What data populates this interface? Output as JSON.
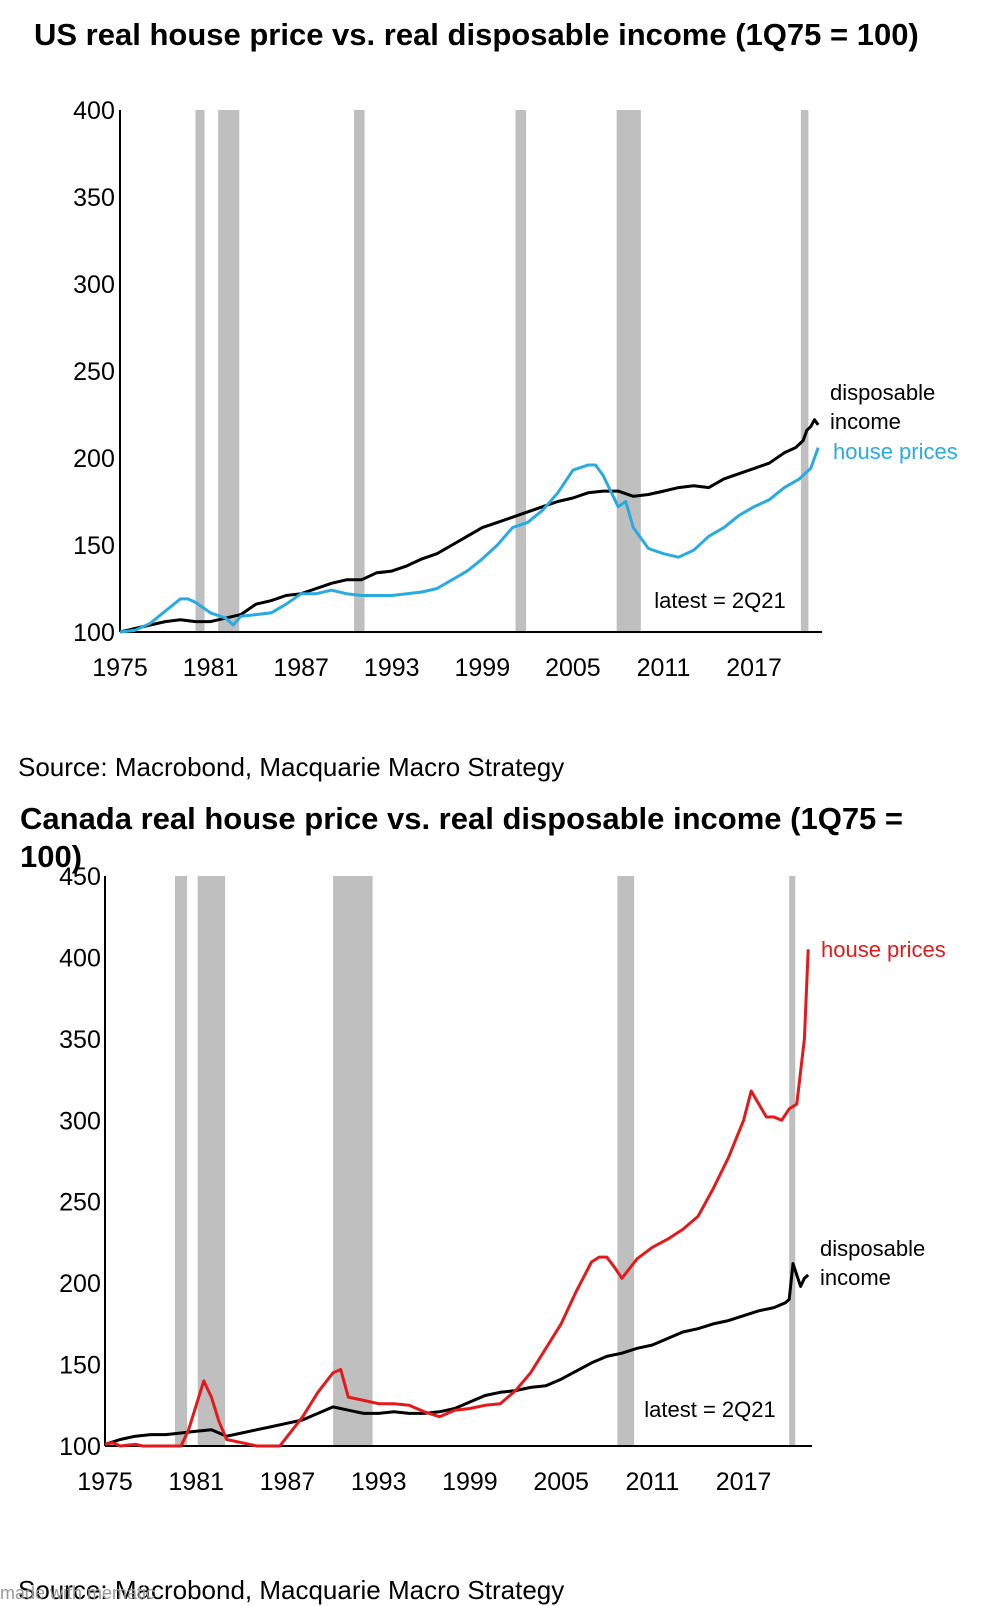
{
  "charts": [
    {
      "title": "US real house price vs. real disposable income (1Q75 = 100)",
      "source": "Source: Macrobond, Macquarie Macro Strategy",
      "note": "latest = 2Q21"
    },
    {
      "title": "Canada real house price vs. real disposable income (1Q75 = 100)",
      "source": "Source: Macrobond, Macquarie Macro Strategy",
      "note": "latest = 2Q21"
    }
  ],
  "watermark": "made with mematic",
  "chart_data": [
    {
      "type": "line",
      "title": "US real house price vs. real disposable income (1Q75 = 100)",
      "xlabel": "",
      "ylabel": "",
      "xlim": [
        1975,
        2021.5
      ],
      "ylim": [
        100,
        400
      ],
      "x_ticks": [
        1975,
        1981,
        1987,
        1993,
        1999,
        2005,
        2011,
        2017
      ],
      "y_ticks": [
        100,
        150,
        200,
        250,
        300,
        350,
        400
      ],
      "recessions": [
        [
          1980.0,
          1980.6
        ],
        [
          1981.5,
          1982.9
        ],
        [
          1990.5,
          1991.2
        ],
        [
          2001.2,
          2001.9
        ],
        [
          2007.9,
          2009.5
        ],
        [
          2020.1,
          2020.6
        ]
      ],
      "colors": {
        "disposable_income": "#000000",
        "house_prices": "#29abe2",
        "recession": "#bfbfbf"
      },
      "series": [
        {
          "name": "disposable income",
          "x": [
            1975,
            1976,
            1977,
            1978,
            1979,
            1980,
            1981,
            1982,
            1983,
            1984,
            1985,
            1986,
            1987,
            1988,
            1989,
            1990,
            1991,
            1992,
            1993,
            1994,
            1995,
            1996,
            1997,
            1998,
            1999,
            2000,
            2001,
            2002,
            2003,
            2004,
            2005,
            2006,
            2007,
            2008,
            2009,
            2010,
            2011,
            2012,
            2013,
            2014,
            2015,
            2016,
            2017,
            2018,
            2019,
            2019.75,
            2020.25,
            2020.5,
            2020.75,
            2021.0,
            2021.25
          ],
          "values": [
            100,
            102,
            104,
            106,
            107,
            106,
            106,
            108,
            110,
            116,
            118,
            121,
            122,
            125,
            128,
            130,
            130,
            134,
            135,
            138,
            142,
            145,
            150,
            155,
            160,
            163,
            166,
            169,
            172,
            175,
            177,
            180,
            181,
            181,
            178,
            179,
            181,
            183,
            184,
            183,
            188,
            191,
            194,
            197,
            203,
            206,
            210,
            216,
            218,
            222,
            219
          ]
        },
        {
          "name": "house prices",
          "x": [
            1975,
            1976,
            1977,
            1978,
            1979,
            1979.5,
            1980,
            1981,
            1982,
            1982.5,
            1983,
            1985,
            1986,
            1987,
            1988,
            1989,
            1990,
            1991,
            1992,
            1993,
            1994,
            1995,
            1996,
            1997,
            1998,
            1999,
            2000,
            2001,
            2002,
            2003,
            2004,
            2005,
            2006,
            2006.5,
            2007,
            2008,
            2008.5,
            2009,
            2010,
            2011,
            2012,
            2013,
            2014,
            2015,
            2016,
            2017,
            2018,
            2019,
            2020,
            2020.75,
            2021.25
          ],
          "values": [
            100,
            101,
            105,
            112,
            119,
            119,
            117,
            111,
            108,
            104,
            109,
            111,
            116,
            122,
            122,
            124,
            122,
            121,
            121,
            121,
            122,
            123,
            125,
            130,
            135,
            142,
            150,
            160,
            163,
            170,
            180,
            193,
            196,
            196,
            190,
            172,
            175,
            160,
            148,
            145,
            143,
            147,
            155,
            160,
            167,
            172,
            176,
            183,
            188,
            194,
            206
          ]
        }
      ],
      "annotations": [
        "disposable income",
        "house prices",
        "latest = 2Q21"
      ]
    },
    {
      "type": "line",
      "title": "Canada real house price vs. real disposable income (1Q75 = 100)",
      "xlabel": "",
      "ylabel": "",
      "xlim": [
        1975,
        2021.5
      ],
      "ylim": [
        100,
        450
      ],
      "x_ticks": [
        1975,
        1981,
        1987,
        1993,
        1999,
        2005,
        2011,
        2017
      ],
      "y_ticks": [
        100,
        150,
        200,
        250,
        300,
        350,
        400,
        450
      ],
      "recessions": [
        [
          1979.6,
          1980.4
        ],
        [
          1981.1,
          1982.9
        ],
        [
          1990.0,
          1992.6
        ],
        [
          2008.7,
          2009.8
        ],
        [
          2020.0,
          2020.4
        ]
      ],
      "colors": {
        "disposable_income": "#000000",
        "house_prices": "#e31a1c",
        "recession": "#bfbfbf"
      },
      "series": [
        {
          "name": "house prices",
          "x": [
            1975,
            1975.5,
            1976,
            1977,
            1977.5,
            1979,
            1980,
            1980.5,
            1981,
            1981.5,
            1982,
            1982.5,
            1983,
            1984,
            1985,
            1986,
            1986.5,
            1987,
            1988,
            1989,
            1990,
            1990.5,
            1991,
            1992,
            1993,
            1994,
            1995,
            1996,
            1997,
            1998,
            1999,
            2000,
            2001,
            2002,
            2003,
            2004,
            2005,
            2006,
            2007,
            2007.5,
            2008,
            2008.5,
            2009,
            2010,
            2011,
            2012,
            2013,
            2014,
            2015,
            2016,
            2017,
            2017.5,
            2018,
            2018.5,
            2019,
            2019.5,
            2020,
            2020.5,
            2021,
            2021.25
          ],
          "values": [
            101,
            102,
            100,
            101,
            99,
            98,
            100,
            110,
            125,
            140,
            130,
            115,
            104,
            102,
            98,
            97,
            100,
            106,
            118,
            133,
            145,
            147,
            130,
            128,
            126,
            126,
            125,
            121,
            118,
            122,
            123,
            125,
            126,
            134,
            145,
            160,
            175,
            195,
            213,
            216,
            216,
            210,
            203,
            215,
            222,
            227,
            233,
            241,
            258,
            277,
            300,
            318,
            310,
            302,
            302,
            300,
            307,
            310,
            350,
            405
          ]
        },
        {
          "name": "disposable income",
          "x": [
            1975,
            1976,
            1977,
            1978,
            1979,
            1980,
            1981,
            1982,
            1983,
            1984,
            1985,
            1986,
            1987,
            1988,
            1989,
            1990,
            1991,
            1992,
            1993,
            1994,
            1995,
            1996,
            1997,
            1998,
            1999,
            2000,
            2001,
            2002,
            2003,
            2004,
            2005,
            2006,
            2007,
            2008,
            2009,
            2010,
            2011,
            2012,
            2013,
            2014,
            2015,
            2016,
            2017,
            2018,
            2019,
            2019.75,
            2020.0,
            2020.25,
            2020.5,
            2020.75,
            2021.0,
            2021.25
          ],
          "values": [
            101,
            104,
            106,
            107,
            107,
            108,
            109,
            110,
            106,
            108,
            110,
            112,
            114,
            116,
            120,
            124,
            122,
            120,
            120,
            121,
            120,
            120,
            121,
            123,
            127,
            131,
            133,
            134,
            136,
            137,
            141,
            146,
            151,
            155,
            157,
            160,
            162,
            166,
            170,
            172,
            175,
            177,
            180,
            183,
            185,
            188,
            190,
            212,
            205,
            198,
            203,
            205
          ]
        }
      ],
      "annotations": [
        "house prices",
        "disposable income",
        "latest = 2Q21"
      ]
    }
  ]
}
